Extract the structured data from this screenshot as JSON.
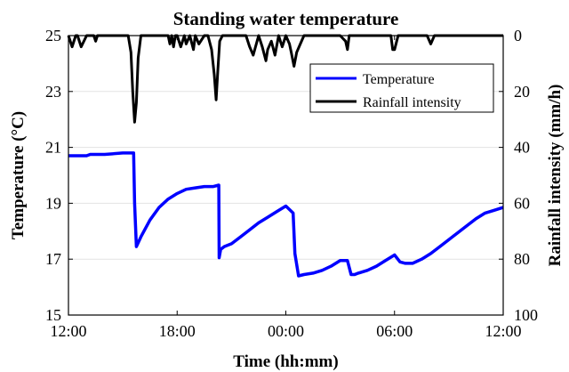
{
  "chart_data": {
    "type": "line",
    "title": "Standing water temperature",
    "xlabel": "Time (hh:mm)",
    "ylabel_left": "Temperature (°C)",
    "ylabel_right": "Rainfall intensity (mm/h)",
    "x_unit": "hours from 12:00",
    "xlim": [
      0,
      24
    ],
    "ylim_left": [
      15,
      25
    ],
    "ylim_right": [
      0,
      100
    ],
    "right_axis_inverted": true,
    "x_ticks": [
      {
        "x": 0,
        "label": "12:00"
      },
      {
        "x": 6,
        "label": "18:00"
      },
      {
        "x": 12,
        "label": "00:00"
      },
      {
        "x": 18,
        "label": "06:00"
      },
      {
        "x": 24,
        "label": "12:00"
      }
    ],
    "y_ticks_left": [
      15,
      17,
      19,
      21,
      23,
      25
    ],
    "y_ticks_right": [
      0,
      20,
      40,
      60,
      80,
      100
    ],
    "grid": "horizontal",
    "legend": {
      "position": "top-right",
      "entries": [
        "Temperature",
        "Rainfall intensity"
      ]
    },
    "series": [
      {
        "name": "Temperature",
        "axis": "left",
        "color": "#0000ff",
        "x": [
          0,
          0.5,
          1.0,
          1.2,
          2.0,
          3.0,
          3.5,
          3.6,
          3.65,
          3.75,
          4.0,
          4.5,
          5.0,
          5.5,
          6.0,
          6.5,
          7.0,
          7.5,
          8.0,
          8.3,
          8.32,
          8.4,
          8.6,
          9.0,
          9.5,
          10.0,
          10.5,
          11.0,
          11.5,
          12.0,
          12.4,
          12.5,
          12.7,
          13.0,
          13.5,
          14.0,
          14.5,
          15.0,
          15.4,
          15.6,
          15.8,
          16.0,
          16.5,
          17.0,
          17.5,
          18.0,
          18.3,
          18.6,
          19.0,
          19.5,
          20.0,
          20.5,
          21.0,
          21.5,
          22.0,
          22.5,
          23.0,
          23.5,
          24.0
        ],
        "y": [
          20.7,
          20.7,
          20.7,
          20.75,
          20.75,
          20.8,
          20.8,
          20.8,
          19.0,
          17.45,
          17.8,
          18.4,
          18.85,
          19.15,
          19.35,
          19.5,
          19.55,
          19.6,
          19.6,
          19.65,
          17.05,
          17.35,
          17.45,
          17.55,
          17.8,
          18.05,
          18.3,
          18.5,
          18.7,
          18.9,
          18.65,
          17.2,
          16.4,
          16.45,
          16.5,
          16.6,
          16.75,
          16.95,
          16.95,
          16.45,
          16.45,
          16.5,
          16.6,
          16.75,
          16.95,
          17.15,
          16.9,
          16.85,
          16.85,
          17.0,
          17.2,
          17.45,
          17.7,
          17.95,
          18.2,
          18.45,
          18.65,
          18.75,
          18.85
        ]
      },
      {
        "name": "Rainfall intensity",
        "axis": "right",
        "color": "#000000",
        "x": [
          0,
          0.2,
          0.4,
          0.5,
          0.7,
          1.0,
          1.4,
          1.5,
          1.6,
          2.0,
          3.0,
          3.3,
          3.45,
          3.55,
          3.65,
          3.75,
          3.85,
          4.0,
          5.0,
          5.5,
          5.6,
          5.7,
          5.8,
          5.9,
          6.0,
          6.2,
          6.4,
          6.5,
          6.7,
          6.9,
          7.0,
          7.2,
          7.5,
          7.7,
          7.9,
          8.05,
          8.15,
          8.25,
          8.35,
          8.5,
          9.0,
          9.8,
          10.0,
          10.2,
          10.5,
          10.7,
          10.9,
          11.0,
          11.2,
          11.4,
          11.6,
          11.8,
          12.0,
          12.2,
          12.3,
          12.45,
          12.6,
          12.8,
          13.0,
          13.5,
          14.0,
          15.0,
          15.3,
          15.4,
          15.5,
          16.0,
          17.0,
          17.8,
          17.9,
          18.0,
          18.2,
          19.0,
          19.8,
          20.0,
          20.2,
          21.0,
          24.0
        ],
        "y": [
          0,
          4,
          0,
          0,
          4,
          0,
          0,
          2,
          0,
          0,
          0,
          0,
          6,
          20,
          31,
          24,
          8,
          0,
          0,
          0,
          3,
          0,
          4,
          0,
          0,
          4,
          0,
          3,
          0,
          5,
          0,
          3,
          0,
          0,
          5,
          14,
          23,
          12,
          2,
          0,
          0,
          0,
          4,
          7,
          0,
          4,
          9,
          5,
          2,
          7,
          0,
          4,
          0,
          3,
          6,
          11,
          6,
          3,
          0,
          0,
          0,
          0,
          2,
          5,
          0,
          0,
          0,
          0,
          5,
          5,
          0,
          0,
          0,
          3,
          0,
          0,
          0
        ]
      }
    ]
  }
}
